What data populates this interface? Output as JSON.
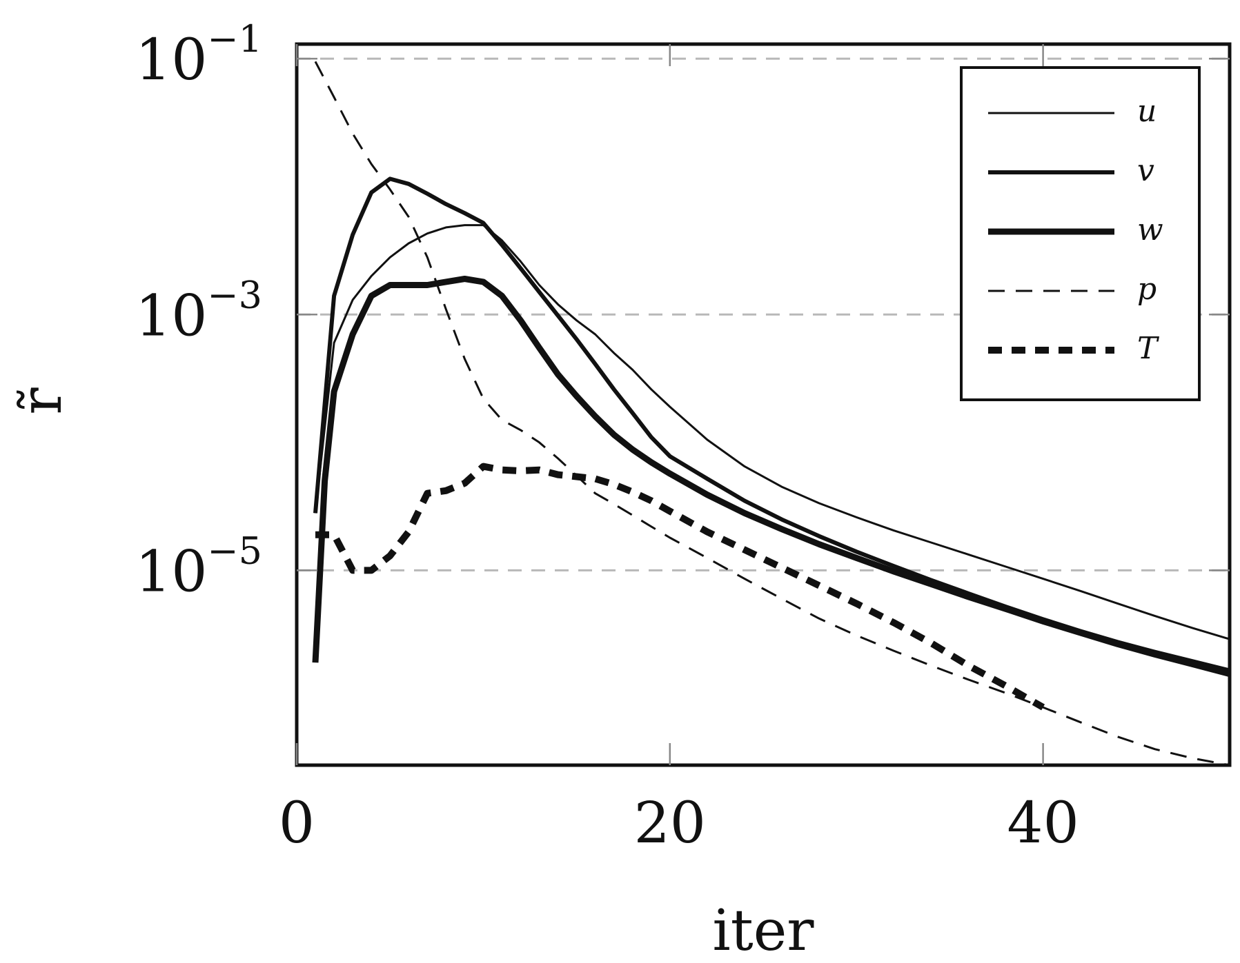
{
  "chart_data": {
    "type": "line",
    "title": "",
    "xlabel": "iter",
    "ylabel": "r̃",
    "yscale": "log",
    "xlim": [
      0,
      50
    ],
    "ylim": [
      3e-07,
      0.13
    ],
    "xticks": [
      {
        "value": 0,
        "label": "0"
      },
      {
        "value": 20,
        "label": "20"
      },
      {
        "value": 40,
        "label": "40"
      }
    ],
    "yticks": [
      {
        "value": 0.1,
        "base": "10",
        "exp": "−1"
      },
      {
        "value": 0.001,
        "base": "10",
        "exp": "−3"
      },
      {
        "value": 1e-05,
        "base": "10",
        "exp": "−5"
      }
    ],
    "grid": true,
    "legend_position": "top-right",
    "series": [
      {
        "name": "u",
        "style": "solid-thin",
        "x": [
          1,
          2,
          3,
          4,
          5,
          6,
          7,
          8,
          9,
          10,
          11,
          12,
          13,
          14,
          15,
          16,
          17,
          18,
          19,
          20,
          22,
          24,
          26,
          28,
          30,
          32,
          34,
          36,
          38,
          40,
          42,
          44,
          46,
          48,
          50
        ],
        "y": [
          2.8e-05,
          0.0006,
          0.0013,
          0.002,
          0.0028,
          0.0036,
          0.0043,
          0.0048,
          0.005,
          0.005,
          0.0038,
          0.0026,
          0.0017,
          0.0012,
          0.0009,
          0.0007,
          0.0005,
          0.00037,
          0.00026,
          0.00019,
          0.000105,
          6.5e-05,
          4.5e-05,
          3.35e-05,
          2.6e-05,
          2.05e-05,
          1.65e-05,
          1.33e-05,
          1.07e-05,
          8.6e-06,
          6.9e-06,
          5.5e-06,
          4.4e-06,
          3.55e-06,
          2.9e-06
        ]
      },
      {
        "name": "v",
        "style": "solid-medium",
        "x": [
          1,
          2,
          3,
          4,
          5,
          6,
          7,
          8,
          9,
          10,
          11,
          12,
          13,
          14,
          15,
          16,
          17,
          18,
          19,
          20,
          22,
          24,
          26,
          28,
          30,
          32,
          34,
          36,
          38,
          40,
          42,
          44,
          46,
          48,
          50
        ],
        "y": [
          2.8e-05,
          0.0014,
          0.0042,
          0.009,
          0.0115,
          0.0105,
          0.0088,
          0.0073,
          0.0062,
          0.0052,
          0.0035,
          0.0023,
          0.0015,
          0.00098,
          0.00064,
          0.00041,
          0.00026,
          0.00017,
          0.00011,
          7.8e-05,
          5.2e-05,
          3.5e-05,
          2.5e-05,
          1.85e-05,
          1.4e-05,
          1.08e-05,
          8.4e-06,
          6.6e-06,
          5.2e-06,
          4.15e-06,
          3.35e-06,
          2.75e-06,
          2.3e-06,
          1.95e-06,
          1.65e-06
        ]
      },
      {
        "name": "w",
        "style": "solid-thick",
        "x": [
          1,
          1.5,
          2,
          3,
          4,
          5,
          6,
          7,
          8,
          9,
          10,
          11,
          12,
          13,
          14,
          15,
          16,
          17,
          18,
          19,
          20,
          22,
          24,
          26,
          28,
          30,
          32,
          34,
          36,
          38,
          40,
          42,
          44,
          46,
          48,
          50
        ],
        "y": [
          1.9e-06,
          5e-05,
          0.00025,
          0.0007,
          0.0014,
          0.0017,
          0.0017,
          0.0017,
          0.0018,
          0.0019,
          0.0018,
          0.0014,
          0.0009,
          0.00055,
          0.00034,
          0.00023,
          0.00016,
          0.000115,
          8.8e-05,
          7e-05,
          5.7e-05,
          3.9e-05,
          2.8e-05,
          2.1e-05,
          1.6e-05,
          1.25e-05,
          9.8e-06,
          7.8e-06,
          6.2e-06,
          5e-06,
          4e-06,
          3.25e-06,
          2.65e-06,
          2.2e-06,
          1.85e-06,
          1.55e-06
        ]
      },
      {
        "name": "p",
        "style": "dashed-thin",
        "x": [
          1,
          2,
          3,
          4,
          5,
          6,
          7,
          8,
          9,
          10,
          11,
          12,
          13,
          14,
          15,
          16,
          17,
          18,
          19,
          20,
          22,
          24,
          26,
          28,
          30,
          32,
          34,
          36,
          38,
          40,
          42,
          44,
          46,
          48,
          50
        ],
        "y": [
          0.095,
          0.05,
          0.026,
          0.015,
          0.0095,
          0.0058,
          0.0028,
          0.0011,
          0.00045,
          0.00022,
          0.00015,
          0.000125,
          0.0001,
          7.5e-05,
          5.5e-05,
          4e-05,
          3.3e-05,
          2.7e-05,
          2.2e-05,
          1.8e-05,
          1.25e-05,
          8.6e-06,
          6e-06,
          4.2e-06,
          3.1e-06,
          2.35e-06,
          1.8e-06,
          1.4e-06,
          1.1e-06,
          8.5e-07,
          6.5e-07,
          5e-07,
          4e-07,
          3.4e-07,
          3e-07
        ]
      },
      {
        "name": "T",
        "style": "dashed-thick",
        "x": [
          1,
          2,
          3,
          4,
          5,
          6,
          7,
          8,
          9,
          10,
          11,
          12,
          13,
          14,
          15,
          16,
          17,
          18,
          19,
          20,
          22,
          24,
          26,
          28,
          30,
          32,
          34,
          36,
          38,
          40
        ],
        "y": [
          1.9e-05,
          1.9e-05,
          1e-05,
          1e-05,
          1.3e-05,
          2e-05,
          4e-05,
          4.2e-05,
          4.8e-05,
          6.5e-05,
          6.1e-05,
          6e-05,
          6.1e-05,
          5.6e-05,
          5.4e-05,
          5.2e-05,
          4.7e-05,
          4.1e-05,
          3.5e-05,
          2.9e-05,
          2e-05,
          1.45e-05,
          1.05e-05,
          7.6e-06,
          5.5e-06,
          3.9e-06,
          2.7e-06,
          1.8e-06,
          1.25e-06,
          8.5e-07
        ]
      }
    ]
  }
}
